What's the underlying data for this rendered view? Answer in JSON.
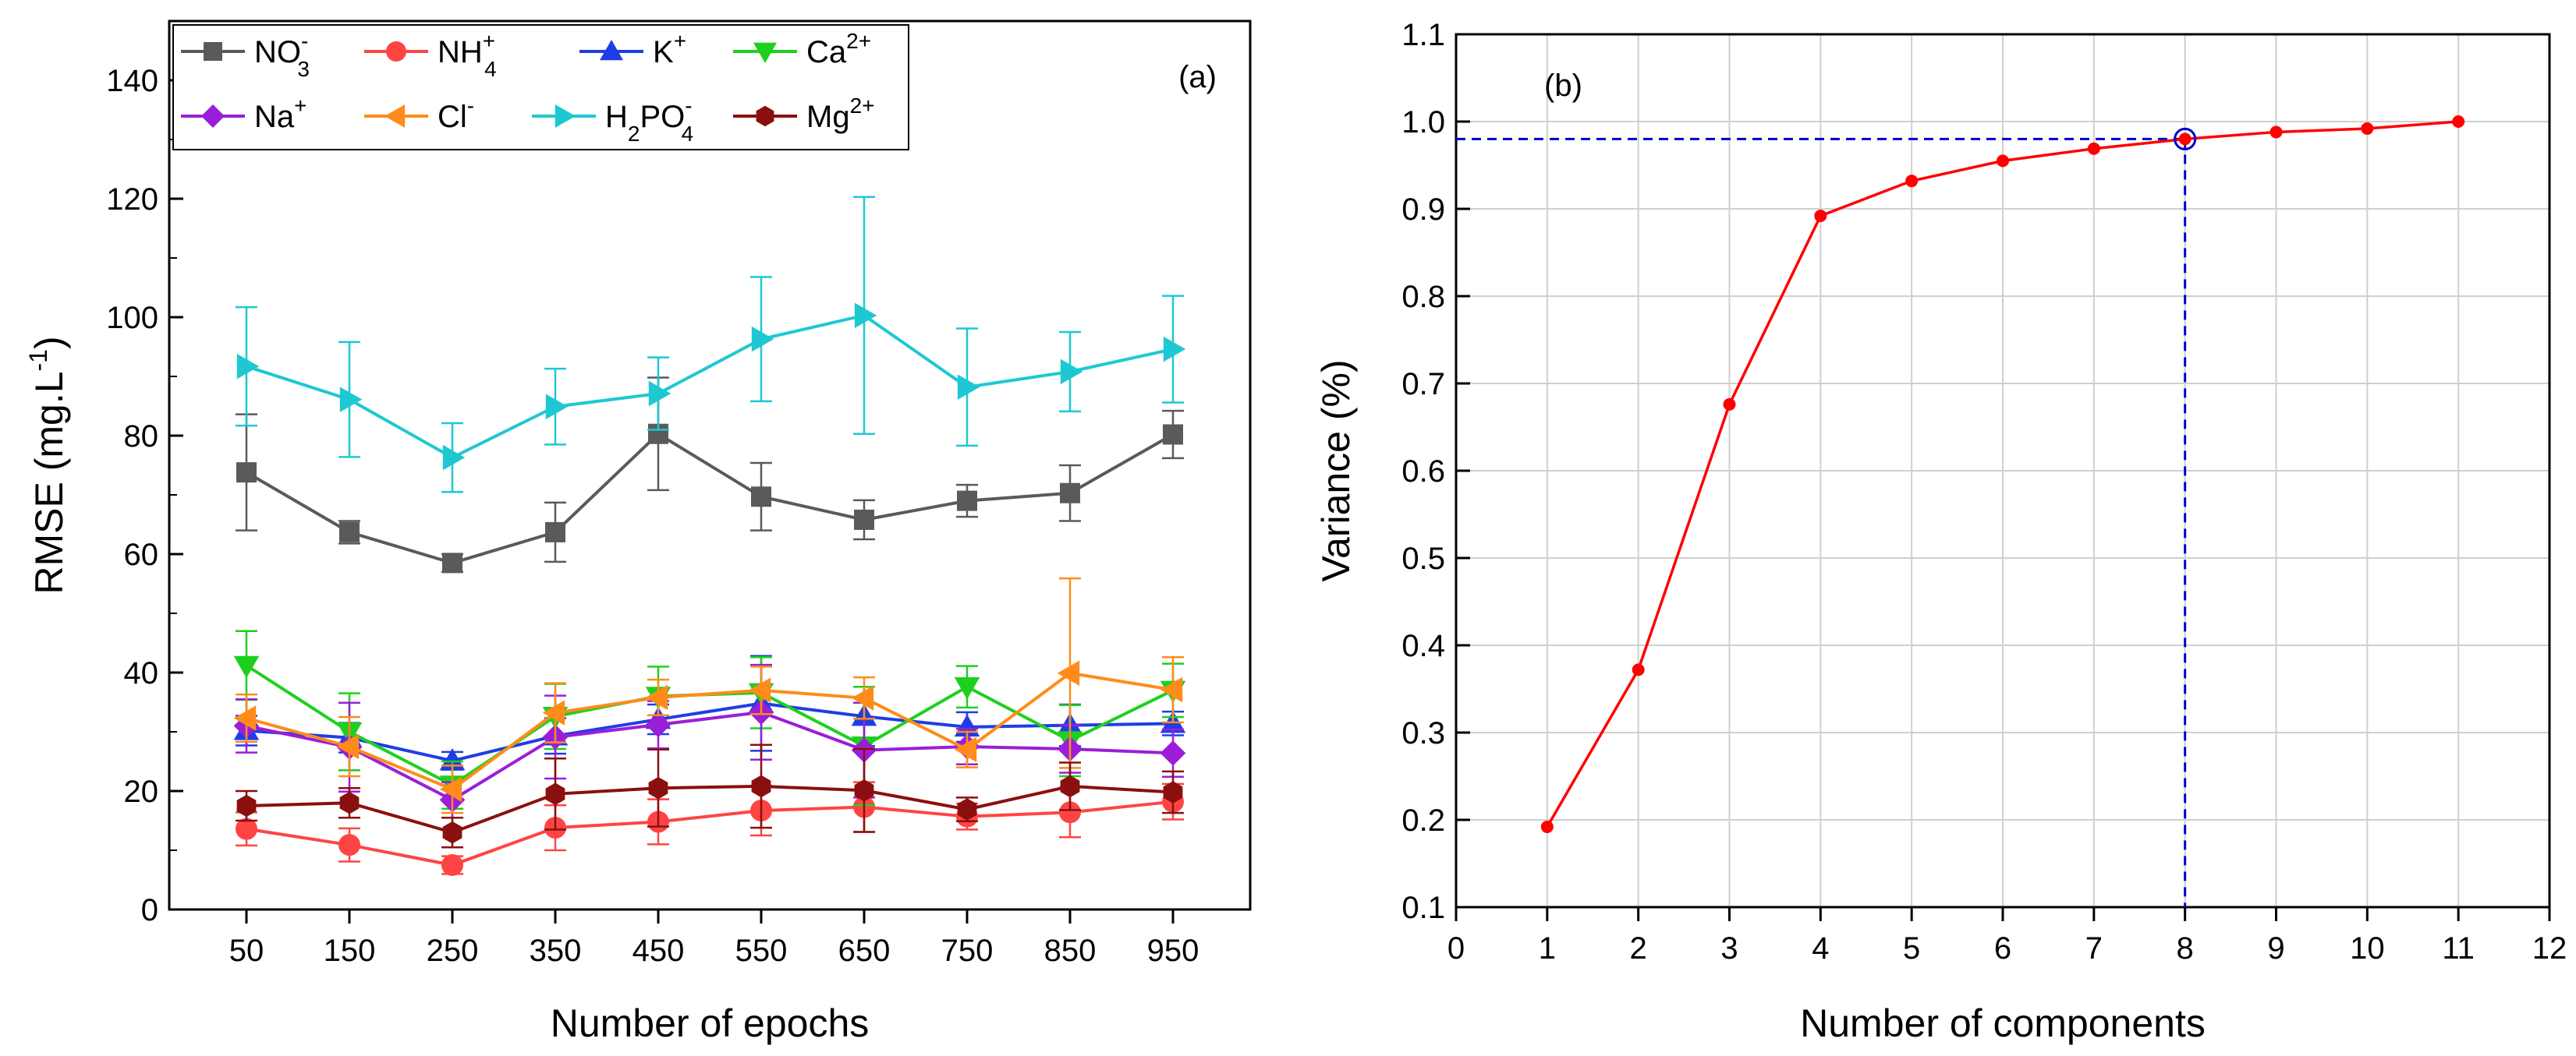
{
  "chart_data": [
    {
      "type": "line",
      "panel_label": "(a)",
      "xlabel": "Number of epochs",
      "ylabel": "RMSE (mg.L",
      "ylabel_sup": "-1",
      "ylabel_suffix": ")",
      "x_categories": [
        "50",
        "150",
        "250",
        "350",
        "450",
        "550",
        "650",
        "750",
        "850",
        "950"
      ],
      "ylim": [
        0,
        150
      ],
      "yticks": [
        0,
        20,
        40,
        60,
        80,
        100,
        120,
        140
      ],
      "grid": false,
      "legend_position": "top-left",
      "series": [
        {
          "name": "NO3-",
          "label_parts": [
            [
              "NO",
              ""
            ],
            [
              "-",
              "sup"
            ],
            [
              "3",
              "sub"
            ]
          ],
          "color": "#5a5a5a",
          "marker": "square",
          "values": [
            73.8,
            63.7,
            58.5,
            63.7,
            80.3,
            69.7,
            65.8,
            69.0,
            70.3,
            80.2
          ],
          "errors": [
            9.8,
            1.9,
            1.5,
            5.0,
            9.5,
            5.7,
            3.3,
            2.7,
            4.7,
            4.0
          ]
        },
        {
          "name": "NH4+",
          "label_parts": [
            [
              "NH",
              ""
            ],
            [
              "+",
              "sup"
            ],
            [
              "4",
              "sub"
            ]
          ],
          "color": "#ff4444",
          "marker": "circle",
          "values": [
            13.6,
            10.9,
            7.5,
            13.8,
            14.8,
            16.7,
            17.3,
            15.7,
            16.4,
            18.2
          ],
          "errors": [
            2.8,
            2.8,
            1.5,
            3.8,
            3.8,
            4.2,
            4.2,
            2.2,
            4.2,
            3.0
          ]
        },
        {
          "name": "K+",
          "label_parts": [
            [
              "K",
              ""
            ],
            [
              "+",
              "sup"
            ]
          ],
          "color": "#1f3de6",
          "marker": "triangle-up",
          "values": [
            30.2,
            29.0,
            25.1,
            29.3,
            32.1,
            34.8,
            32.6,
            30.8,
            31.1,
            31.4
          ],
          "errors": [
            2.5,
            2.5,
            1.5,
            3.0,
            2.5,
            8.0,
            5.0,
            2.5,
            3.5,
            2.0
          ]
        },
        {
          "name": "Ca2+",
          "label_parts": [
            [
              "Ca",
              ""
            ],
            [
              "2+",
              "sup"
            ]
          ],
          "color": "#1ed01e",
          "marker": "triangle-down",
          "values": [
            41.2,
            30.0,
            21.0,
            32.6,
            36.0,
            36.6,
            27.6,
            37.6,
            28.5,
            37.0
          ],
          "errors": [
            5.8,
            6.5,
            4.0,
            5.5,
            5.0,
            6.0,
            10.0,
            3.5,
            6.0,
            4.5
          ]
        },
        {
          "name": "Na+",
          "label_parts": [
            [
              "Na",
              ""
            ],
            [
              "+",
              "sup"
            ]
          ],
          "color": "#9a1ed8",
          "marker": "diamond",
          "values": [
            31.0,
            27.4,
            18.5,
            29.1,
            31.2,
            33.3,
            26.9,
            27.5,
            27.1,
            26.4
          ],
          "errors": [
            4.5,
            7.5,
            3.0,
            7.0,
            4.0,
            8.0,
            8.0,
            3.0,
            4.0,
            4.0
          ]
        },
        {
          "name": "Cl-",
          "label_parts": [
            [
              "Cl",
              ""
            ],
            [
              "-",
              "sup"
            ]
          ],
          "color": "#ff8c1a",
          "marker": "triangle-left",
          "values": [
            32.3,
            27.5,
            20.3,
            33.2,
            35.8,
            37.0,
            35.7,
            27.0,
            39.9,
            37.1
          ],
          "errors": [
            4.0,
            5.0,
            4.0,
            5.0,
            3.0,
            4.0,
            3.5,
            3.0,
            16.0,
            5.5
          ]
        },
        {
          "name": "H2PO4-",
          "label_parts": [
            [
              "H",
              ""
            ],
            [
              "2",
              "sub"
            ],
            [
              "PO",
              ""
            ],
            [
              "-",
              "sup"
            ],
            [
              "4",
              "sub"
            ]
          ],
          "color": "#1ec8d2",
          "marker": "triangle-right",
          "values": [
            91.7,
            86.1,
            76.3,
            84.9,
            87.1,
            96.3,
            100.3,
            88.2,
            90.8,
            94.6
          ],
          "errors": [
            10.0,
            9.7,
            5.8,
            6.4,
            6.1,
            10.5,
            20.0,
            9.9,
            6.7,
            9.0
          ]
        },
        {
          "name": "Mg2+",
          "label_parts": [
            [
              "Mg",
              ""
            ],
            [
              "2+",
              "sup"
            ]
          ],
          "color": "#8b0f0f",
          "marker": "hexagon",
          "values": [
            17.5,
            18.0,
            13.0,
            19.5,
            20.5,
            20.8,
            20.1,
            16.9,
            20.8,
            19.8
          ],
          "errors": [
            2.5,
            2.5,
            2.5,
            6.0,
            6.5,
            7.0,
            7.0,
            2.0,
            4.0,
            3.5
          ]
        }
      ]
    },
    {
      "type": "line",
      "panel_label": "(b)",
      "xlabel": "Number of components",
      "ylabel": "Variance (%)",
      "xlim": [
        0,
        12
      ],
      "ylim": [
        0.1,
        1.1
      ],
      "xticks": [
        0,
        1,
        2,
        3,
        4,
        5,
        6,
        7,
        8,
        9,
        10,
        11,
        12
      ],
      "yticks": [
        "0.1",
        "0.2",
        "0.3",
        "0.4",
        "0.5",
        "0.6",
        "0.7",
        "0.8",
        "0.9",
        "1.0",
        "1.1"
      ],
      "grid": true,
      "color": "#ff0000",
      "x": [
        1,
        2,
        3,
        4,
        5,
        6,
        7,
        8,
        9,
        10,
        11
      ],
      "y": [
        0.192,
        0.372,
        0.676,
        0.892,
        0.932,
        0.955,
        0.969,
        0.98,
        0.988,
        0.992,
        1.0
      ],
      "highlight": {
        "x": 8,
        "y": 0.98,
        "guide_color": "#0000cc"
      }
    }
  ]
}
